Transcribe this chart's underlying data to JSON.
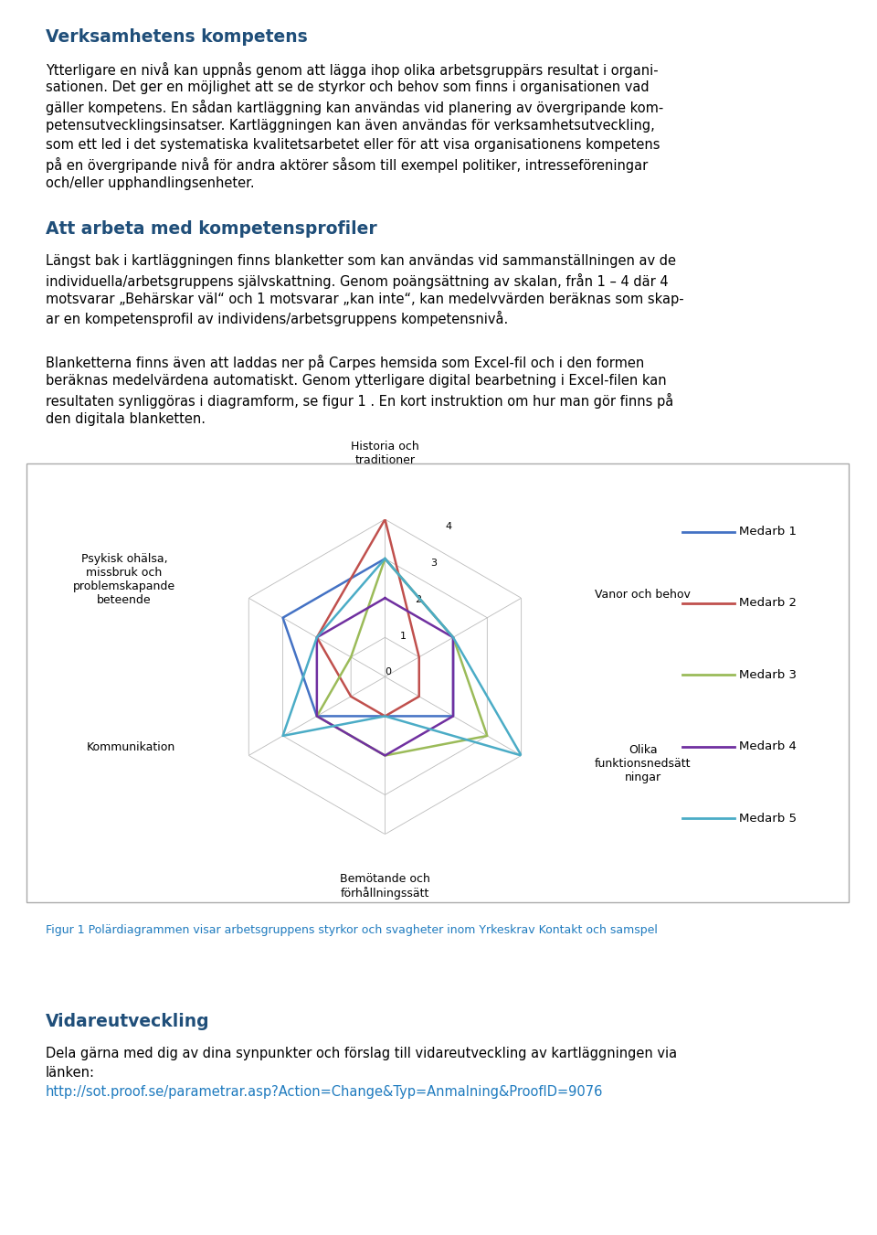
{
  "title1": "Verksamhetens kompetens",
  "title2": "Att arbeta med kompetensprofiler",
  "title3": "Vidareutveckling",
  "fig_caption": "Figur 1 Polärdiagrammen visar arbetsgruppens styrkor och svagheter inom Yrkeskrav Kontakt och samspel",
  "link": "http://sot.proof.se/parametrar.asp?Action=Change&Typ=Anmalning&ProofID=9076",
  "para1_lines": [
    "Ytterligare en nivå kan uppnås genom att lägga ihop olika arbetsgruppärs resultat i organi-",
    "sationen. Det ger en möjlighet att se de styrkor och behov som finns i organisationen vad",
    "gäller kompetens. En sådan kartläggning kan användas vid planering av övergripande kom-",
    "petensutvecklingsinsatser. Kartläggningen kan även användas för verksamhetsutveckling,",
    "som ett led i det systematiska kvalitetsarbetet eller för att visa organisationens kompetens",
    "på en övergripande nivå för andra aktörer såsom till exempel politiker, intresseföreningar",
    "och/eller upphandlingsenheter."
  ],
  "para2_lines": [
    "Längst bak i kartläggningen finns blanketter som kan användas vid sammanställningen av de",
    "individuella/arbetsgruppens självskattning. Genom poängsättning av skalan, från 1 – 4 där 4",
    "motsvarar „Behärskar väl“ och 1 motsvarar „kan inte“, kan medelvvärden beräknas som skap-",
    "ar en kompetensprofil av individens/arbetsgruppens kompetensnivå."
  ],
  "para3_lines": [
    "Blanketterna finns även att laddas ner på Carpes hemsida som Excel-fil och i den formen",
    "beräknas medelvärdena automatiskt. Genom ytterligare digital bearbetning i Excel-filen kan",
    "resultaten synliggöras i diagramform, se figur 1 . En kort instruktion om hur man gör finns på",
    "den digitala blanketten."
  ],
  "para4_lines": [
    "Dela gärna med dig av dina synpunkter och förslag till vidareutveckling av kartläggningen via",
    "länken:"
  ],
  "radar_data": {
    "Medarb 1": [
      3,
      2,
      2,
      1,
      2,
      3
    ],
    "Medarb 2": [
      4,
      1,
      1,
      1,
      1,
      2
    ],
    "Medarb 3": [
      3,
      2,
      3,
      2,
      2,
      1
    ],
    "Medarb 4": [
      2,
      2,
      2,
      2,
      2,
      2
    ],
    "Medarb 5": [
      3,
      2,
      4,
      1,
      3,
      2
    ]
  },
  "radar_colors": {
    "Medarb 1": "#4472C4",
    "Medarb 2": "#C0504D",
    "Medarb 3": "#9BBB59",
    "Medarb 4": "#7030A0",
    "Medarb 5": "#4BACC6"
  },
  "radar_max": 4,
  "heading_color": "#1F4E79",
  "body_color": "#000000",
  "fig_caption_color": "#1F7BBF",
  "link_color": "#1F7BBF",
  "background_color": "#FFFFFF"
}
